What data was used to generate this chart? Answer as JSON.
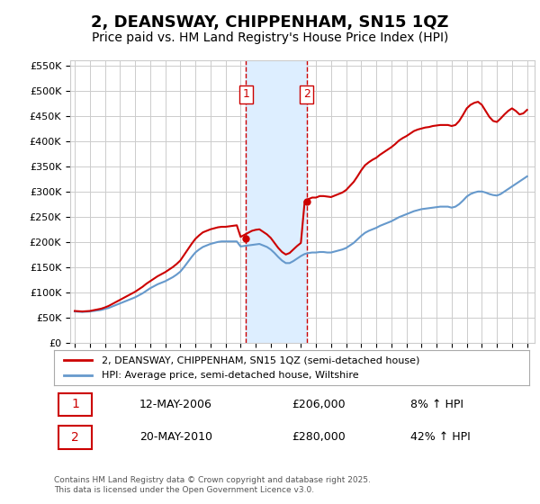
{
  "title": "2, DEANSWAY, CHIPPENHAM, SN15 1QZ",
  "subtitle": "Price paid vs. HM Land Registry's House Price Index (HPI)",
  "title_fontsize": 13,
  "subtitle_fontsize": 10,
  "bg_color": "#ffffff",
  "plot_bg_color": "#ffffff",
  "grid_color": "#cccccc",
  "ylabel_ticks": [
    "£0",
    "£50K",
    "£100K",
    "£150K",
    "£200K",
    "£250K",
    "£300K",
    "£350K",
    "£400K",
    "£450K",
    "£500K",
    "£550K"
  ],
  "ytick_values": [
    0,
    50000,
    100000,
    150000,
    200000,
    250000,
    300000,
    350000,
    400000,
    450000,
    500000,
    550000
  ],
  "ylim": [
    0,
    560000
  ],
  "xlim_start": 1995.0,
  "xlim_end": 2025.5,
  "xtick_years": [
    1995,
    1996,
    1997,
    1998,
    1999,
    2000,
    2001,
    2002,
    2003,
    2004,
    2005,
    2006,
    2007,
    2008,
    2009,
    2010,
    2011,
    2012,
    2013,
    2014,
    2015,
    2016,
    2017,
    2018,
    2019,
    2020,
    2021,
    2022,
    2023,
    2024,
    2025
  ],
  "red_color": "#cc0000",
  "blue_color": "#6699cc",
  "sale1_x": 2006.36,
  "sale1_y": 206000,
  "sale2_x": 2010.38,
  "sale2_y": 280000,
  "vline1_x": 2006.36,
  "vline2_x": 2010.38,
  "shade_color": "#ddeeff",
  "legend_label_red": "2, DEANSWAY, CHIPPENHAM, SN15 1QZ (semi-detached house)",
  "legend_label_blue": "HPI: Average price, semi-detached house, Wiltshire",
  "note1_num": "1",
  "note1_date": "12-MAY-2006",
  "note1_price": "£206,000",
  "note1_hpi": "8% ↑ HPI",
  "note2_num": "2",
  "note2_date": "20-MAY-2010",
  "note2_price": "£280,000",
  "note2_hpi": "42% ↑ HPI",
  "footer": "Contains HM Land Registry data © Crown copyright and database right 2025.\nThis data is licensed under the Open Government Licence v3.0.",
  "hpi_data_x": [
    1995.0,
    1995.25,
    1995.5,
    1995.75,
    1996.0,
    1996.25,
    1996.5,
    1996.75,
    1997.0,
    1997.25,
    1997.5,
    1997.75,
    1998.0,
    1998.25,
    1998.5,
    1998.75,
    1999.0,
    1999.25,
    1999.5,
    1999.75,
    2000.0,
    2000.25,
    2000.5,
    2000.75,
    2001.0,
    2001.25,
    2001.5,
    2001.75,
    2002.0,
    2002.25,
    2002.5,
    2002.75,
    2003.0,
    2003.25,
    2003.5,
    2003.75,
    2004.0,
    2004.25,
    2004.5,
    2004.75,
    2005.0,
    2005.25,
    2005.5,
    2005.75,
    2006.0,
    2006.25,
    2006.5,
    2006.75,
    2007.0,
    2007.25,
    2007.5,
    2007.75,
    2008.0,
    2008.25,
    2008.5,
    2008.75,
    2009.0,
    2009.25,
    2009.5,
    2009.75,
    2010.0,
    2010.25,
    2010.5,
    2010.75,
    2011.0,
    2011.25,
    2011.5,
    2011.75,
    2012.0,
    2012.25,
    2012.5,
    2012.75,
    2013.0,
    2013.25,
    2013.5,
    2013.75,
    2014.0,
    2014.25,
    2014.5,
    2014.75,
    2015.0,
    2015.25,
    2015.5,
    2015.75,
    2016.0,
    2016.25,
    2016.5,
    2016.75,
    2017.0,
    2017.25,
    2017.5,
    2017.75,
    2018.0,
    2018.25,
    2018.5,
    2018.75,
    2019.0,
    2019.25,
    2019.5,
    2019.75,
    2020.0,
    2020.25,
    2020.5,
    2020.75,
    2021.0,
    2021.25,
    2021.5,
    2021.75,
    2022.0,
    2022.25,
    2022.5,
    2022.75,
    2023.0,
    2023.25,
    2023.5,
    2023.75,
    2024.0,
    2024.25,
    2024.5,
    2024.75,
    2025.0
  ],
  "hpi_data_y": [
    62000,
    61500,
    61000,
    61500,
    62000,
    63000,
    64000,
    65000,
    67000,
    69000,
    72000,
    75000,
    78000,
    81000,
    84000,
    87000,
    90000,
    94000,
    98000,
    103000,
    108000,
    112000,
    116000,
    119000,
    122000,
    126000,
    130000,
    135000,
    141000,
    150000,
    160000,
    170000,
    179000,
    185000,
    190000,
    193000,
    196000,
    198000,
    200000,
    201000,
    201000,
    201000,
    201000,
    201000,
    191000,
    192000,
    193000,
    194000,
    195000,
    196000,
    193000,
    190000,
    185000,
    178000,
    170000,
    163000,
    158000,
    158000,
    162000,
    167000,
    172000,
    176000,
    178000,
    179000,
    179000,
    180000,
    180000,
    179000,
    179000,
    181000,
    183000,
    185000,
    188000,
    193000,
    198000,
    205000,
    212000,
    218000,
    222000,
    225000,
    228000,
    232000,
    235000,
    238000,
    241000,
    245000,
    249000,
    252000,
    255000,
    258000,
    261000,
    263000,
    265000,
    266000,
    267000,
    268000,
    269000,
    270000,
    270000,
    270000,
    268000,
    270000,
    275000,
    282000,
    290000,
    295000,
    298000,
    300000,
    300000,
    298000,
    295000,
    293000,
    292000,
    295000,
    300000,
    305000,
    310000,
    315000,
    320000,
    325000,
    330000
  ],
  "red_data_x": [
    1995.0,
    1995.25,
    1995.5,
    1995.75,
    1996.0,
    1996.25,
    1996.5,
    1996.75,
    1997.0,
    1997.25,
    1997.5,
    1997.75,
    1998.0,
    1998.25,
    1998.5,
    1998.75,
    1999.0,
    1999.25,
    1999.5,
    1999.75,
    2000.0,
    2000.25,
    2000.5,
    2000.75,
    2001.0,
    2001.25,
    2001.5,
    2001.75,
    2002.0,
    2002.25,
    2002.5,
    2002.75,
    2003.0,
    2003.25,
    2003.5,
    2003.75,
    2004.0,
    2004.25,
    2004.5,
    2004.75,
    2005.0,
    2005.25,
    2005.5,
    2005.75,
    2006.0,
    2006.25,
    2006.5,
    2006.75,
    2007.0,
    2007.25,
    2007.5,
    2007.75,
    2008.0,
    2008.25,
    2008.5,
    2008.75,
    2009.0,
    2009.25,
    2009.5,
    2009.75,
    2010.0,
    2010.25,
    2010.5,
    2010.75,
    2011.0,
    2011.25,
    2011.5,
    2011.75,
    2012.0,
    2012.25,
    2012.5,
    2012.75,
    2013.0,
    2013.25,
    2013.5,
    2013.75,
    2014.0,
    2014.25,
    2014.5,
    2014.75,
    2015.0,
    2015.25,
    2015.5,
    2015.75,
    2016.0,
    2016.25,
    2016.5,
    2016.75,
    2017.0,
    2017.25,
    2017.5,
    2017.75,
    2018.0,
    2018.25,
    2018.5,
    2018.75,
    2019.0,
    2019.25,
    2019.5,
    2019.75,
    2020.0,
    2020.25,
    2020.5,
    2020.75,
    2021.0,
    2021.25,
    2021.5,
    2021.75,
    2022.0,
    2022.25,
    2022.5,
    2022.75,
    2023.0,
    2023.25,
    2023.5,
    2023.75,
    2024.0,
    2024.25,
    2024.5,
    2024.75,
    2025.0
  ],
  "red_data_y": [
    63000,
    62500,
    62000,
    62500,
    63000,
    64500,
    66000,
    67500,
    70000,
    73000,
    77000,
    81000,
    85000,
    89000,
    93000,
    97000,
    101000,
    106000,
    111000,
    117000,
    122000,
    127000,
    132000,
    136000,
    140000,
    145000,
    150000,
    156000,
    163000,
    174000,
    185000,
    196000,
    206000,
    213000,
    219000,
    222000,
    225000,
    227000,
    229000,
    230000,
    230000,
    231000,
    232000,
    233000,
    210000,
    214000,
    218000,
    222000,
    224000,
    225000,
    220000,
    215000,
    208000,
    198000,
    188000,
    180000,
    175000,
    178000,
    185000,
    192000,
    198000,
    280000,
    285000,
    288000,
    288000,
    291000,
    291000,
    290000,
    289000,
    292000,
    295000,
    298000,
    303000,
    311000,
    319000,
    330000,
    342000,
    352000,
    358000,
    363000,
    367000,
    373000,
    378000,
    383000,
    388000,
    394000,
    401000,
    406000,
    410000,
    415000,
    420000,
    423000,
    425000,
    427000,
    428000,
    430000,
    431000,
    432000,
    432000,
    432000,
    430000,
    432000,
    440000,
    452000,
    465000,
    472000,
    476000,
    478000,
    472000,
    460000,
    448000,
    440000,
    438000,
    445000,
    453000,
    460000,
    465000,
    460000,
    453000,
    455000,
    462000
  ]
}
